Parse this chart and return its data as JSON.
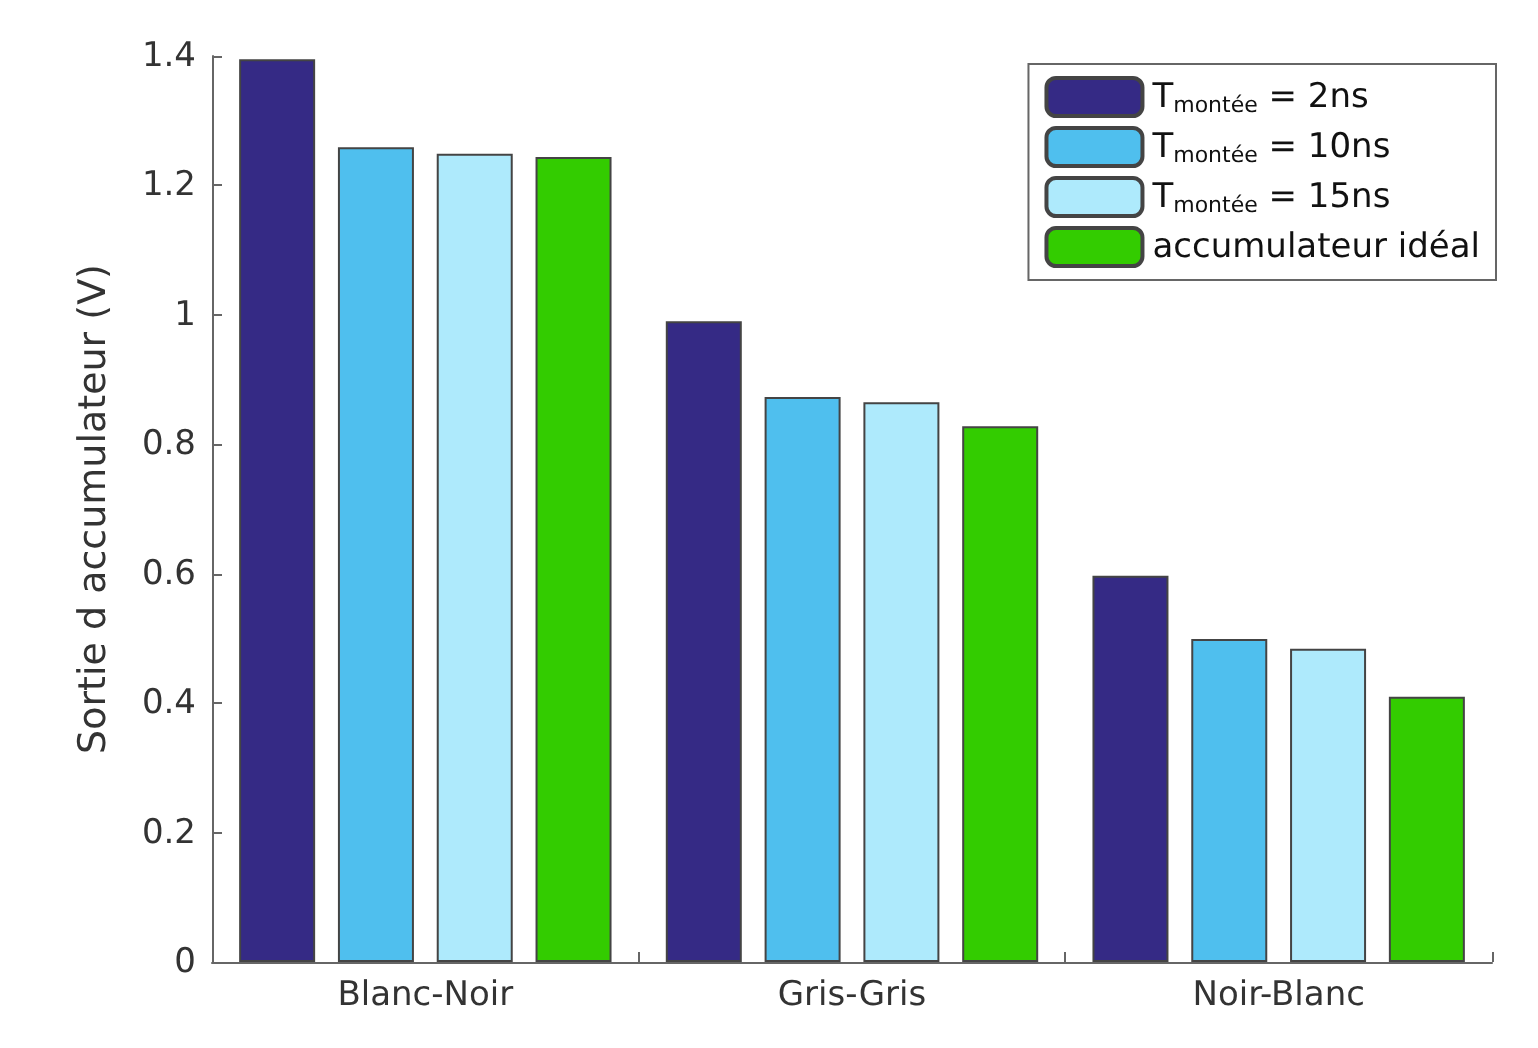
{
  "chart_data": {
    "type": "bar",
    "ylabel": "Sortie d accumulateur (V)",
    "categories": [
      "Blanc-Noir",
      "Gris-Gris",
      "Noir-Blanc"
    ],
    "series": [
      {
        "name": "T$_{montée}$ = 2ns",
        "color": "#352a85",
        "values": [
          1.395,
          0.99,
          0.597
        ]
      },
      {
        "name": "T$_{montée}$ = 10ns",
        "color": "#4fbfee",
        "values": [
          1.259,
          0.873,
          0.499
        ]
      },
      {
        "name": "T$_{montée}$ = 15ns",
        "color": "#aeeafc",
        "values": [
          1.249,
          0.865,
          0.484
        ]
      },
      {
        "name": "accumulateur idéal",
        "color": "#33cc00",
        "values": [
          1.244,
          0.828,
          0.41
        ]
      }
    ],
    "ylim": [
      0,
      1.4
    ],
    "yticks": [
      0,
      0.2,
      0.4,
      0.6,
      0.8,
      1,
      1.2,
      1.4
    ],
    "grid": false,
    "legend": "top right"
  }
}
